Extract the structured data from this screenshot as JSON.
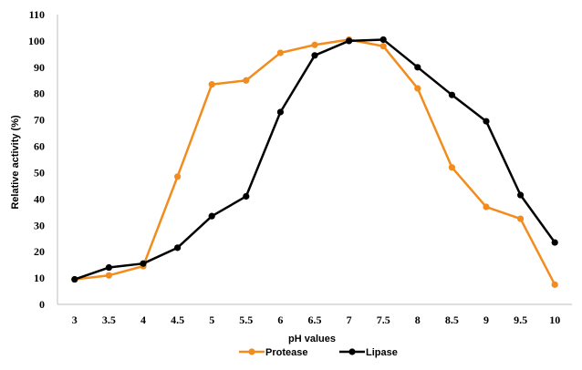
{
  "chart_data": {
    "type": "line",
    "xlabel": "pH values",
    "ylabel": "Relative activity (%)",
    "categories": [
      "3",
      "3.5",
      "4",
      "4.5",
      "5",
      "5.5",
      "6",
      "6.5",
      "7",
      "7.5",
      "8",
      "8.5",
      "9",
      "9.5",
      "10"
    ],
    "ylim": [
      0,
      110
    ],
    "yticks": [
      0,
      10,
      20,
      30,
      40,
      50,
      60,
      70,
      80,
      90,
      100,
      110
    ],
    "grid": false,
    "legend_position": "bottom",
    "series": [
      {
        "name": "Protease",
        "color": "#F28C1E",
        "values": [
          9.5,
          11,
          14.5,
          48.5,
          83.5,
          85,
          95.5,
          98.5,
          100.5,
          98,
          82,
          52,
          37,
          32.5,
          7.5
        ]
      },
      {
        "name": "Lipase",
        "color": "#000000",
        "values": [
          9.5,
          14,
          15.5,
          21.5,
          33.5,
          41,
          73,
          94.5,
          100,
          100.5,
          90,
          79.5,
          69.5,
          41.5,
          23.5
        ]
      }
    ]
  }
}
